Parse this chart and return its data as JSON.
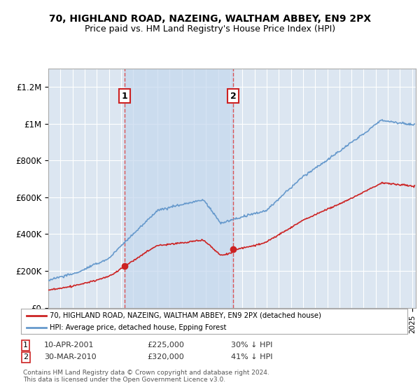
{
  "title": "70, HIGHLAND ROAD, NAZEING, WALTHAM ABBEY, EN9 2PX",
  "subtitle": "Price paid vs. HM Land Registry's House Price Index (HPI)",
  "ylim": [
    0,
    1300000
  ],
  "xlim_start": 1995.0,
  "xlim_end": 2025.3,
  "background_color": "#dce6f1",
  "shade_color": "#c5d8ee",
  "grid_color": "#ffffff",
  "red_line_color": "#cc2222",
  "blue_line_color": "#6699cc",
  "sale1_x": 2001.27,
  "sale1_y": 225000,
  "sale1_label": "1",
  "sale2_x": 2010.24,
  "sale2_y": 320000,
  "sale2_label": "2",
  "vline_color": "#dd4444",
  "legend_label_red": "70, HIGHLAND ROAD, NAZEING, WALTHAM ABBEY, EN9 2PX (detached house)",
  "legend_label_blue": "HPI: Average price, detached house, Epping Forest",
  "sale1_date": "10-APR-2001",
  "sale1_price": "£225,000",
  "sale1_note": "30% ↓ HPI",
  "sale2_date": "30-MAR-2010",
  "sale2_price": "£320,000",
  "sale2_note": "41% ↓ HPI",
  "footnote": "Contains HM Land Registry data © Crown copyright and database right 2024.\nThis data is licensed under the Open Government Licence v3.0.",
  "yticks": [
    0,
    200000,
    400000,
    600000,
    800000,
    1000000,
    1200000
  ],
  "ytick_labels": [
    "£0",
    "£200K",
    "£400K",
    "£600K",
    "£800K",
    "£1M",
    "£1.2M"
  ]
}
